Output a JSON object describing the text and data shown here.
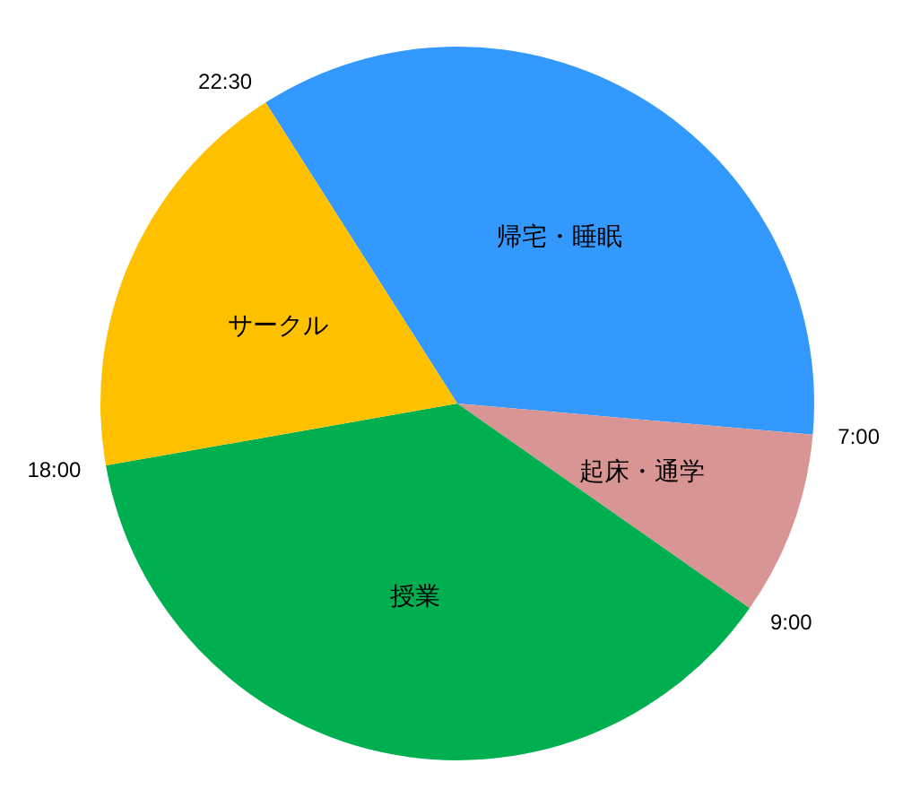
{
  "chart_data": {
    "type": "pie",
    "categories": [
      "帰宅・睡眠",
      "起床・通学",
      "授業",
      "サークル"
    ],
    "values": [
      35.42,
      8.33,
      37.5,
      18.75
    ],
    "colors": [
      "#3399ff",
      "#d99594",
      "#00b050",
      "#ffc000"
    ],
    "annotations": [
      "22:30",
      "7:00",
      "9:00",
      "18:00"
    ]
  }
}
